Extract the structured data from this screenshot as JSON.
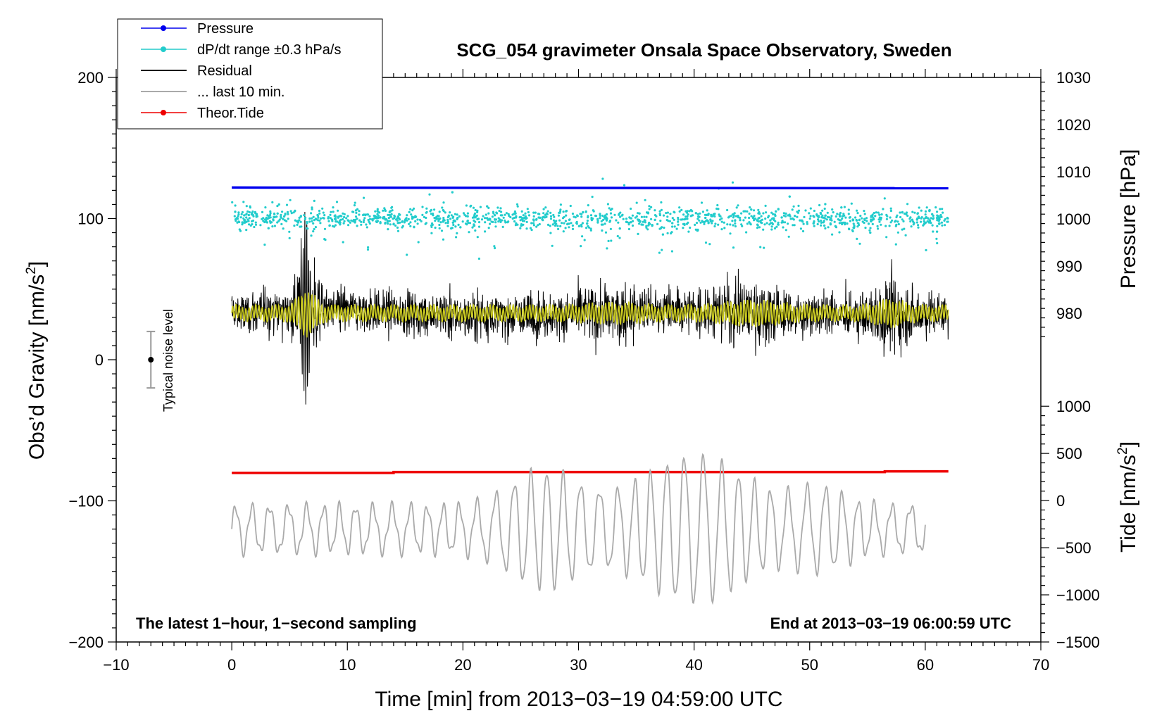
{
  "chart_data": {
    "type": "line",
    "title": "SCG_054 gravimeter Onsala Space Observatory, Sweden",
    "xlabel": "Time [min] from 2013−03−19 04:59:00 UTC",
    "ylabel_left": "Obs’d Gravity [nm/s²]",
    "ylabel_left_main": "Obs’d Gravity [nm/s",
    "ylabel_left_sup": "2",
    "ylabel_left_end": "]",
    "ylabel_right_top": "Pressure [hPa]",
    "ylabel_right_bottom": "Tide [nm/s²]",
    "ylabel_right_bottom_main": "Tide [nm/s",
    "ylabel_right_bottom_sup": "2",
    "ylabel_right_bottom_end": "]",
    "xlim": [
      -10,
      70
    ],
    "ylim": [
      -200,
      200
    ],
    "pressure_axis": {
      "ticks": [
        980,
        990,
        1000,
        1010,
        1020,
        1030
      ]
    },
    "tide_axis": {
      "ticks": [
        -1500,
        -1000,
        -500,
        0,
        500,
        1000
      ]
    },
    "x_ticks": [
      -10,
      0,
      10,
      20,
      30,
      40,
      50,
      60,
      70
    ],
    "x_tick_labels": [
      "−10",
      "0",
      "10",
      "20",
      "30",
      "40",
      "50",
      "60",
      "70"
    ],
    "y_ticks": [
      -200,
      -100,
      0,
      100,
      200
    ],
    "y_tick_labels": [
      "−200",
      "−100",
      "0",
      "100",
      "200"
    ],
    "pressure_tick_labels": [
      "980",
      "990",
      "1000",
      "1010",
      "1020",
      "1030"
    ],
    "tide_tick_labels": [
      "−1500",
      "−1000",
      "−500",
      "0",
      "500",
      "1000"
    ],
    "legend": [
      {
        "label": "Pressure",
        "color": "#0000ee",
        "style": "line-dot"
      },
      {
        "label": "dP/dt range ±0.3 hPa/s",
        "color": "#22cccc",
        "style": "line-dot"
      },
      {
        "label": "Residual",
        "color": "#000000",
        "style": "line"
      },
      {
        "label": "... last 10 min.",
        "color": "#aaaaaa",
        "style": "line"
      },
      {
        "label": "Theor.Tide",
        "color": "#ee0000",
        "style": "line-dot"
      }
    ],
    "annotations": {
      "left_bottom": "The latest 1−hour, 1−second sampling",
      "right_bottom": "End at 2013−03−19 06:00:59 UTC",
      "noise_label": "Typical noise level"
    },
    "series": [
      {
        "name": "Pressure",
        "color": "#0000ee",
        "approx_level_gravity_units": 122,
        "x_range": [
          0,
          62
        ]
      },
      {
        "name": "dP/dt range ±0.3 hPa/s",
        "color": "#22cccc",
        "approx_center_gravity_units": 100,
        "x_range": [
          0,
          62
        ]
      },
      {
        "name": "Residual",
        "color": "#000000",
        "approx_center": 33,
        "x_range": [
          0,
          62
        ]
      },
      {
        "name": "Smoothed residual",
        "color": "#cccc22",
        "approx_center": 33,
        "x_range": [
          0,
          62
        ]
      },
      {
        "name": "... last 10 min.",
        "color": "#aaaaaa",
        "approx_center": -120,
        "x_range": [
          0,
          60
        ]
      },
      {
        "name": "Theor.Tide",
        "color": "#ee0000",
        "start": -80,
        "end": -79,
        "x_range": [
          0,
          62
        ]
      }
    ],
    "noise_bar": {
      "x": -7,
      "center": 0,
      "low": -20,
      "high": 20
    }
  }
}
